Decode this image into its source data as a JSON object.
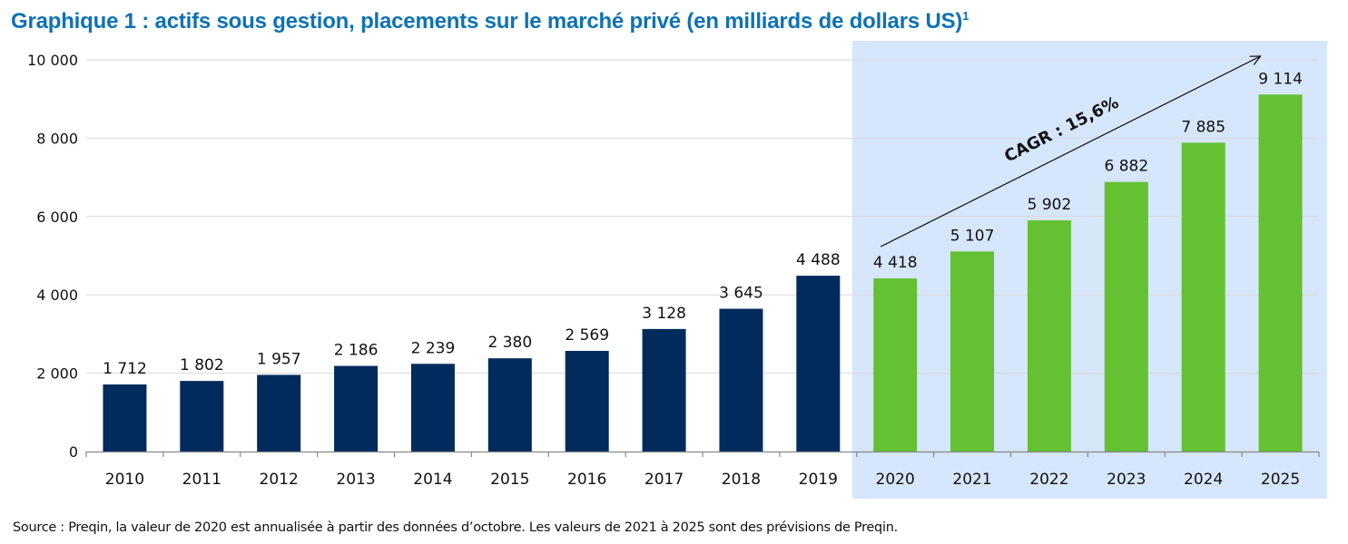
{
  "title": "Graphique 1 : actifs sous gestion, placements sur le marché privé (en milliards de dollars US)",
  "title_footnote": "1",
  "source": "Source : Preqin, la valeur de 2020 est annualisée à partir des données d’octobre. Les valeurs de 2021 à 2025 sont des prévisions de Preqin.",
  "colors": {
    "title": "#0d72b5",
    "historical_bar": "#002b5c",
    "forecast_bar": "#63c132",
    "forecast_panel": "#d6e6fb",
    "gridline": "#d9d9d9",
    "axis": "#888888"
  },
  "chart_data": {
    "type": "bar",
    "title": "Graphique 1 : actifs sous gestion, placements sur le marché privé (en milliards de dollars US)",
    "xlabel": "",
    "ylabel": "",
    "ylim": [
      0,
      10000
    ],
    "yticks": [
      0,
      2000,
      4000,
      6000,
      8000,
      10000
    ],
    "ytick_labels": [
      "0",
      "2 000",
      "4 000",
      "6 000",
      "8 000",
      "10 000"
    ],
    "grid": true,
    "categories": [
      "2010",
      "2011",
      "2012",
      "2013",
      "2014",
      "2015",
      "2016",
      "2017",
      "2018",
      "2019",
      "2020",
      "2021",
      "2022",
      "2023",
      "2024",
      "2025"
    ],
    "values": [
      1712,
      1802,
      1957,
      2186,
      2239,
      2380,
      2569,
      3128,
      3645,
      4488,
      4418,
      5107,
      5902,
      6882,
      7885,
      9114
    ],
    "value_labels": [
      "1 712",
      "1 802",
      "1 957",
      "2 186",
      "2 239",
      "2 380",
      "2 569",
      "3 128",
      "3 645",
      "4 488",
      "4 418",
      "5 107",
      "5 902",
      "6 882",
      "7 885",
      "9 114"
    ],
    "series_group": [
      "historical",
      "historical",
      "historical",
      "historical",
      "historical",
      "historical",
      "historical",
      "historical",
      "historical",
      "historical",
      "forecast",
      "forecast",
      "forecast",
      "forecast",
      "forecast",
      "forecast"
    ],
    "highlight_range": [
      "2020",
      "2025"
    ],
    "annotations": [
      {
        "text": "CAGR : 15,6%",
        "type": "arrow",
        "from_category": "2020",
        "to_category": "2025"
      }
    ]
  }
}
